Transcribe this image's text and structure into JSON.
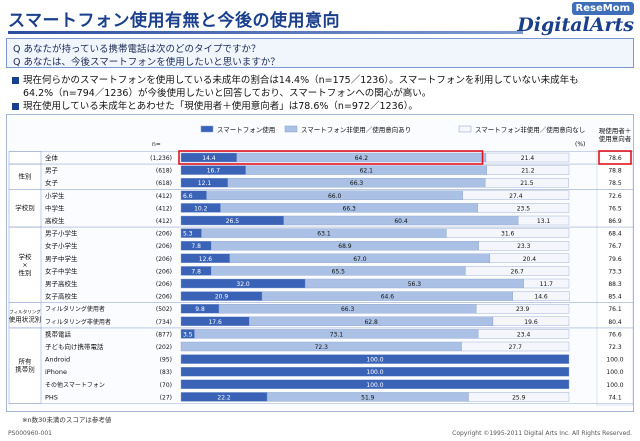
{
  "header": {
    "title": "スマートフォン使用有無と今後の使用意向",
    "logo_top": "ReseMom",
    "logo": "DigitalArts"
  },
  "questions": [
    "Q あなたが持っている携帯電話は次のどのタイプですか？",
    "Q あなたは、今後スマートフォンを使用したいと思いますか？"
  ],
  "summary": [
    "現在何らかのスマートフォンを使用している未成年の割合は14.4%（n=175／1236）。スマートフォンを利用していない未成年も",
    "64.2%（n=794／1236）が今後使用したいと回答しており、スマートフォンへの関心が高い。",
    "現在使用している未成年とあわせた「現使用者＋使用意向者」は78.6%（n=972／1236）。"
  ],
  "footer": {
    "note": "※n数30未満のスコアは参考値",
    "left": "PS000960-001",
    "right": "Copyright ©1995-2011 Digital Arts Inc. All Rights Reserved."
  },
  "colors": {
    "use": "#3a63b8",
    "intend": "#aac0e4",
    "none": "#f4f6fb",
    "highlight": "#e0141e"
  },
  "chart_data": {
    "type": "bar",
    "stacked": true,
    "orientation": "horizontal",
    "n_header": "n=",
    "unit_label": "(%)",
    "right_header": [
      "現使用者＋",
      "使用意向者"
    ],
    "series": [
      {
        "name": "スマートフォン使用",
        "color": "#3a63b8"
      },
      {
        "name": "スマートフォン非使用／使用意向あり",
        "color": "#aac0e4"
      },
      {
        "name": "スマートフォン非使用／使用意向なし",
        "color": "#f4f6fb"
      }
    ],
    "groups": [
      {
        "label": "",
        "rows": 1
      },
      {
        "label": "性別",
        "rows": 2
      },
      {
        "label": "学校別",
        "rows": 3
      },
      {
        "label": "学校×性別",
        "label_lines": [
          "学校",
          "×",
          "性別"
        ],
        "rows": 6
      },
      {
        "label": "フィルタリング使用状況別",
        "label_lines": [
          "フィルタリング",
          "使用状況別"
        ],
        "rows": 2
      },
      {
        "label": "所有携帯別",
        "label_lines": [
          "所有",
          "携帯別"
        ],
        "rows": 6
      }
    ],
    "rows": [
      {
        "label": "全体",
        "n": "(1,236)",
        "values": [
          14.4,
          64.2,
          21.4
        ],
        "total": 78.6,
        "highlight": true
      },
      {
        "label": "男子",
        "n": "(618)",
        "values": [
          16.7,
          62.1,
          21.2
        ],
        "total": 78.8
      },
      {
        "label": "女子",
        "n": "(618)",
        "values": [
          12.1,
          66.3,
          21.5
        ],
        "total": 78.5
      },
      {
        "label": "小学生",
        "n": "(412)",
        "values": [
          6.6,
          66.0,
          27.4
        ],
        "total": 72.6
      },
      {
        "label": "中学生",
        "n": "(412)",
        "values": [
          10.2,
          66.3,
          23.5
        ],
        "total": 76.5
      },
      {
        "label": "高校生",
        "n": "(412)",
        "values": [
          26.5,
          60.4,
          13.1
        ],
        "total": 86.9
      },
      {
        "label": "男子小学生",
        "n": "(206)",
        "values": [
          5.3,
          63.1,
          31.6
        ],
        "total": 68.4
      },
      {
        "label": "女子小学生",
        "n": "(206)",
        "values": [
          7.8,
          68.9,
          23.3
        ],
        "total": 76.7
      },
      {
        "label": "男子中学生",
        "n": "(206)",
        "values": [
          12.6,
          67.0,
          20.4
        ],
        "total": 79.6
      },
      {
        "label": "女子中学生",
        "n": "(206)",
        "values": [
          7.8,
          65.5,
          26.7
        ],
        "total": 73.3
      },
      {
        "label": "男子高校生",
        "n": "(206)",
        "values": [
          32.0,
          56.3,
          11.7
        ],
        "total": 88.3
      },
      {
        "label": "女子高校生",
        "n": "(206)",
        "values": [
          20.9,
          64.6,
          14.6
        ],
        "total": 85.4
      },
      {
        "label": "フィルタリング使用者",
        "n": "(502)",
        "values": [
          9.8,
          66.3,
          23.9
        ],
        "total": 76.1
      },
      {
        "label": "フィルタリング非使用者",
        "n": "(734)",
        "values": [
          17.6,
          62.8,
          19.6
        ],
        "total": 80.4
      },
      {
        "label": "携帯電話",
        "n": "(877)",
        "values": [
          3.5,
          73.1,
          23.4
        ],
        "total": 76.6
      },
      {
        "label": "子ども向け携帯電話",
        "n": "(202)",
        "values": [
          0,
          72.3,
          27.7
        ],
        "total": 72.3
      },
      {
        "label": "Android",
        "n": "(95)",
        "values": [
          100.0,
          0,
          0
        ],
        "total": 100.0
      },
      {
        "label": "iPhone",
        "n": "(83)",
        "values": [
          100.0,
          0,
          0
        ],
        "total": 100.0
      },
      {
        "label": "その他スマートフォン",
        "n": "(70)",
        "values": [
          100.0,
          0,
          0
        ],
        "total": 100.0
      },
      {
        "label": "PHS",
        "n": "(27)",
        "values": [
          22.2,
          51.9,
          25.9
        ],
        "total": 74.1
      }
    ],
    "xlim": [
      0,
      100
    ]
  }
}
